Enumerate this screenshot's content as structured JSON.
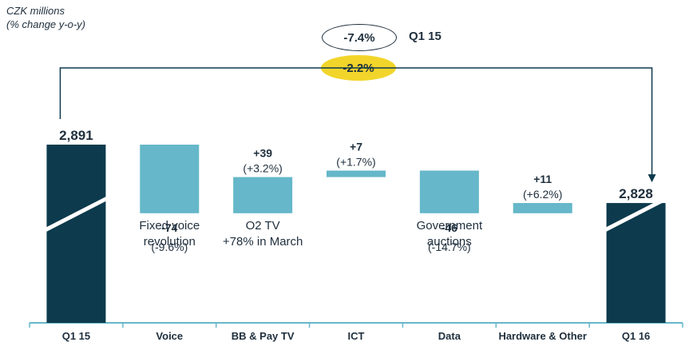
{
  "unit_note": {
    "line1": "CZK millions",
    "line2": "(% change y-o-y)"
  },
  "comparison": {
    "prior_change": "-7.4%",
    "prior_period": "Q1 15",
    "current_change": "-2.2%"
  },
  "colors": {
    "dark_bar": "#0d3a4d",
    "step_bar": "#65b7c9",
    "axis": "#65b7c9",
    "text": "#1f2f3d",
    "highlight": "#f2d52a"
  },
  "chart_data": {
    "type": "bar",
    "subtype": "waterfall",
    "categories": [
      "Q1 15",
      "Voice",
      "BB & Pay TV",
      "ICT",
      "Data",
      "Hardware & Other",
      "Q1 16"
    ],
    "values": [
      2891,
      -74,
      39,
      7,
      -46,
      11,
      2828
    ],
    "kinds": [
      "total",
      "delta",
      "delta",
      "delta",
      "delta",
      "delta",
      "total"
    ],
    "value_labels": [
      "2,891",
      "-74",
      "+39",
      "+7",
      "-46",
      "+11",
      "2,828"
    ],
    "pct_labels": [
      "",
      "(-9.6%)",
      "(+3.2%)",
      "(+1.7%)",
      "(-14.7%)",
      "(+6.2%)",
      ""
    ],
    "annotations": [
      "",
      "Fixed voice\nrevolution",
      "O2 TV\n+78% in March",
      "",
      "Government\nauctions",
      "",
      ""
    ],
    "axis_break": true
  }
}
